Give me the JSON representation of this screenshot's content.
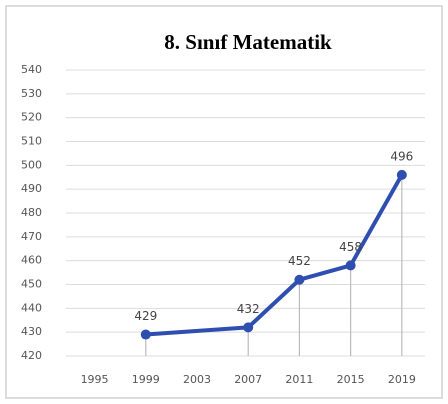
{
  "chart_data": {
    "type": "line",
    "title": "8. Sınıf Matematik",
    "x": [
      1999,
      2007,
      2011,
      2015,
      2019
    ],
    "series": [
      {
        "name": "Matematik",
        "color": "#2f4fb0",
        "values": [
          429,
          432,
          452,
          458,
          496
        ]
      }
    ],
    "xlim": [
      1992.3,
      2021.2
    ],
    "xticks": [
      1995,
      1999,
      2003,
      2007,
      2011,
      2015,
      2019
    ],
    "ylim": [
      420,
      540
    ],
    "yticks": [
      420,
      430,
      440,
      450,
      460,
      470,
      480,
      490,
      500,
      510,
      520,
      530,
      540
    ],
    "grid": true,
    "drop_lines": true
  }
}
